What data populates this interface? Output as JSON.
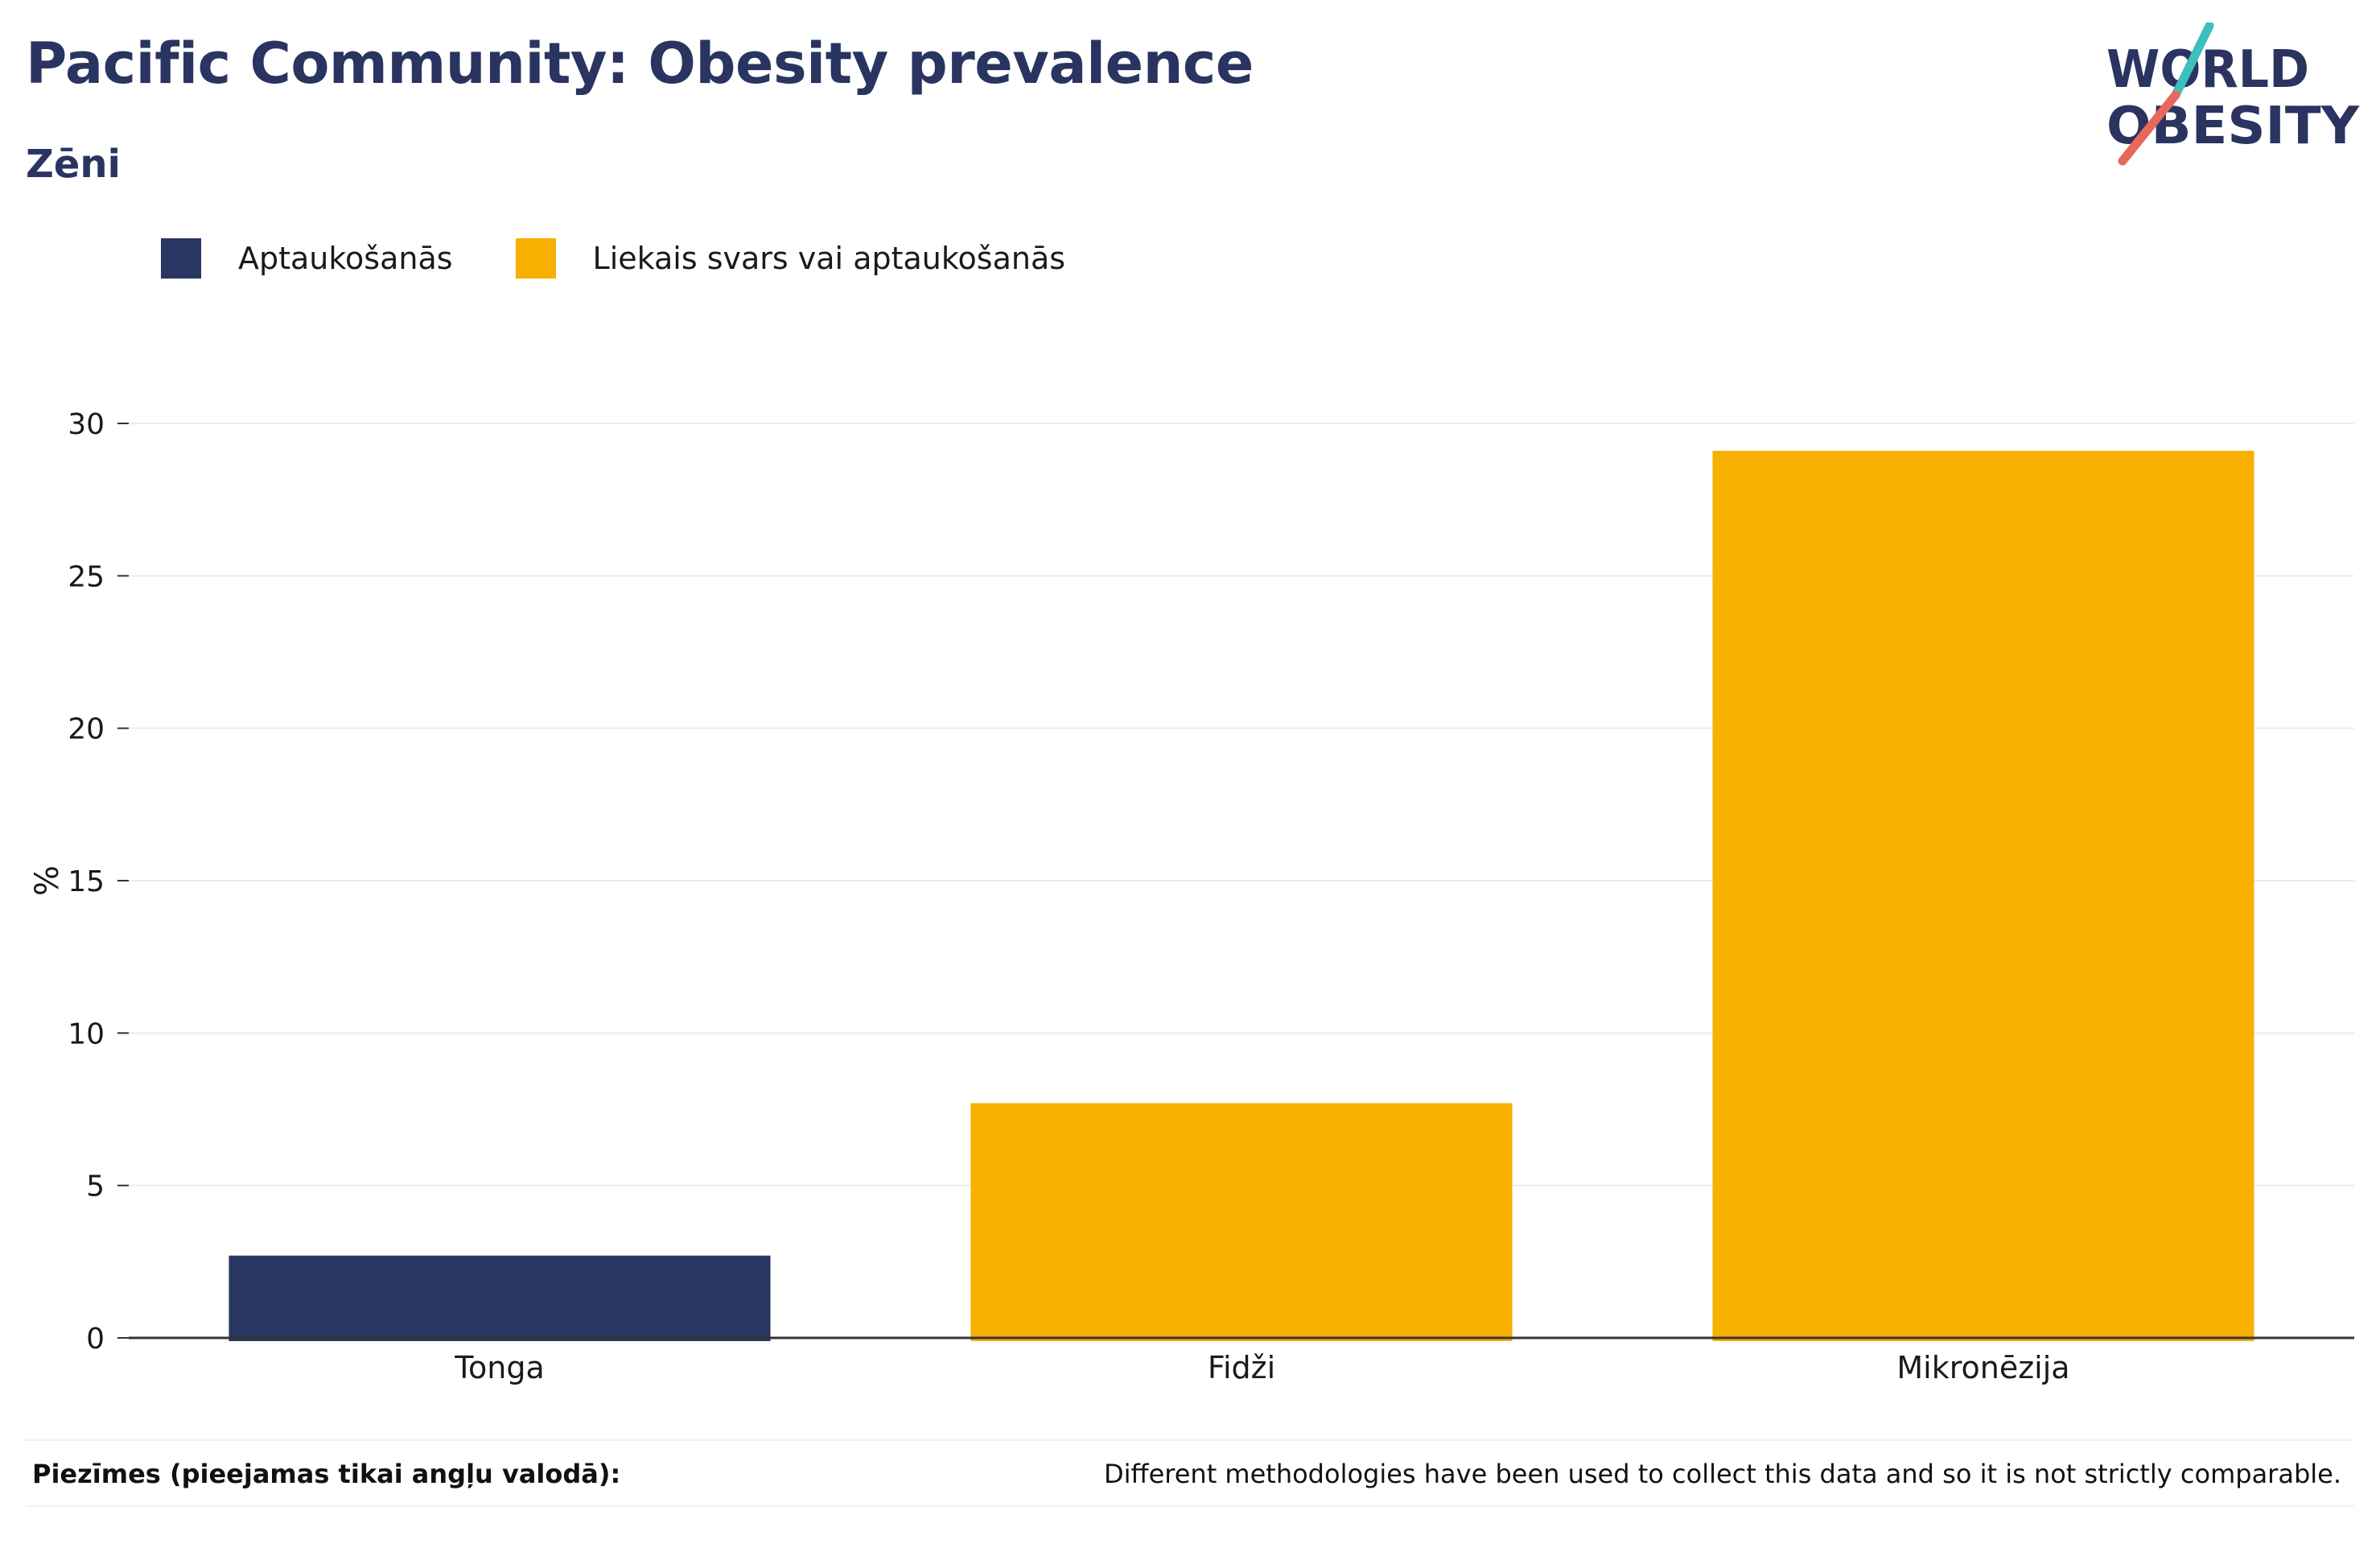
{
  "header": {
    "title": "Pacific Community: Obesity prevalence",
    "subtitle": "Zēni"
  },
  "logo": {
    "line1": "WORLD",
    "line2": "OBESITY"
  },
  "legend": [
    {
      "label": "Aptaukošanās",
      "color": "#2a3662"
    },
    {
      "label": "Liekais svars vai aptaukošanās",
      "color": "#f7b000"
    }
  ],
  "chart_data": {
    "type": "bar",
    "categories": [
      "Tonga",
      "Fidži",
      "Mikronēzija"
    ],
    "values": [
      2.7,
      7.7,
      29.1
    ],
    "series_index": [
      0,
      1,
      1
    ],
    "ylabel": "%",
    "xlabel": "",
    "ylim": [
      0,
      30
    ],
    "yticks": [
      0,
      5,
      10,
      15,
      20,
      25,
      30
    ],
    "grid": true
  },
  "footer": {
    "notes_label": "Piezīmes (pieejamas tikai angļu valodā):",
    "notes_text": "Different methodologies have been used to collect this data and so it is not strictly comparable."
  }
}
